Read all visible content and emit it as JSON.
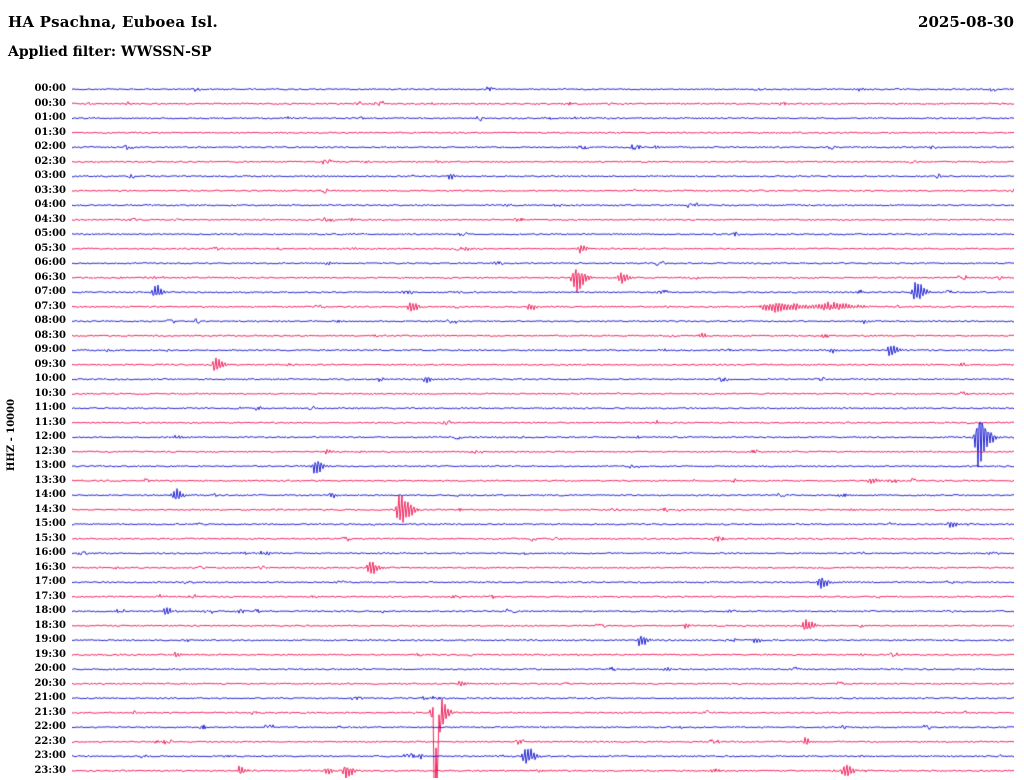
{
  "header": {
    "station_title": "HA Psachna, Euboea Isl.",
    "date": "2025-08-30",
    "filter_label": "Applied filter: WWSSN-SP"
  },
  "chart_data": {
    "type": "line",
    "subtype": "helicorder-seismogram",
    "title": "HA Psachna, Euboea Isl.",
    "date": "2025-08-30",
    "filter": "WWSSN-SP",
    "y_axis_label": "HHZ - 10000",
    "row_duration_minutes": 30,
    "grid": false,
    "legend": "none",
    "trace_colors": {
      "blue": "#0d0dcf",
      "red": "#ee1150"
    },
    "rows": [
      {
        "label": "00:00",
        "color": "blue"
      },
      {
        "label": "00:30",
        "color": "red"
      },
      {
        "label": "01:00",
        "color": "blue"
      },
      {
        "label": "01:30",
        "color": "red"
      },
      {
        "label": "02:00",
        "color": "blue"
      },
      {
        "label": "02:30",
        "color": "red"
      },
      {
        "label": "03:00",
        "color": "blue"
      },
      {
        "label": "03:30",
        "color": "red"
      },
      {
        "label": "04:00",
        "color": "blue"
      },
      {
        "label": "04:30",
        "color": "red"
      },
      {
        "label": "05:00",
        "color": "blue"
      },
      {
        "label": "05:30",
        "color": "red"
      },
      {
        "label": "06:00",
        "color": "blue"
      },
      {
        "label": "06:30",
        "color": "red"
      },
      {
        "label": "07:00",
        "color": "blue"
      },
      {
        "label": "07:30",
        "color": "red"
      },
      {
        "label": "08:00",
        "color": "blue"
      },
      {
        "label": "08:30",
        "color": "red"
      },
      {
        "label": "09:00",
        "color": "blue"
      },
      {
        "label": "09:30",
        "color": "red"
      },
      {
        "label": "10:00",
        "color": "blue"
      },
      {
        "label": "10:30",
        "color": "red"
      },
      {
        "label": "11:00",
        "color": "blue"
      },
      {
        "label": "11:30",
        "color": "red"
      },
      {
        "label": "12:00",
        "color": "blue"
      },
      {
        "label": "12:30",
        "color": "red"
      },
      {
        "label": "13:00",
        "color": "blue"
      },
      {
        "label": "13:30",
        "color": "red"
      },
      {
        "label": "14:00",
        "color": "blue"
      },
      {
        "label": "14:30",
        "color": "red"
      },
      {
        "label": "15:00",
        "color": "blue"
      },
      {
        "label": "15:30",
        "color": "red"
      },
      {
        "label": "16:00",
        "color": "blue"
      },
      {
        "label": "16:30",
        "color": "red"
      },
      {
        "label": "17:00",
        "color": "blue"
      },
      {
        "label": "17:30",
        "color": "red"
      },
      {
        "label": "18:00",
        "color": "blue"
      },
      {
        "label": "18:30",
        "color": "red"
      },
      {
        "label": "19:00",
        "color": "blue"
      },
      {
        "label": "19:30",
        "color": "red"
      },
      {
        "label": "20:00",
        "color": "blue"
      },
      {
        "label": "20:30",
        "color": "red"
      },
      {
        "label": "21:00",
        "color": "blue"
      },
      {
        "label": "21:30",
        "color": "red"
      },
      {
        "label": "22:00",
        "color": "blue"
      },
      {
        "label": "22:30",
        "color": "red"
      },
      {
        "label": "23:00",
        "color": "blue"
      },
      {
        "label": "23:30",
        "color": "red"
      }
    ],
    "events": [
      {
        "row": 0,
        "t": 0.836,
        "amp": 2.2,
        "s": 2
      },
      {
        "row": 2,
        "t": 0.534,
        "amp": 2.2,
        "s": 2
      },
      {
        "row": 4,
        "t": 0.62,
        "amp": 1.8,
        "s": 2
      },
      {
        "row": 6,
        "t": 0.401,
        "amp": 3.5,
        "s": 2.5
      },
      {
        "row": 8,
        "t": 0.46,
        "amp": 2.0,
        "s": 2
      },
      {
        "row": 9,
        "t": 0.295,
        "amp": 2.5,
        "s": 2
      },
      {
        "row": 11,
        "t": 0.417,
        "amp": 2.6,
        "s": 2
      },
      {
        "row": 11,
        "t": 0.539,
        "amp": 5,
        "s": 3
      },
      {
        "row": 12,
        "t": 0.27,
        "amp": 2.2,
        "s": 2
      },
      {
        "row": 13,
        "t": 0.534,
        "amp": 15,
        "s": 4
      },
      {
        "row": 13,
        "t": 0.582,
        "amp": 7,
        "s": 3
      },
      {
        "row": 14,
        "t": 0.088,
        "amp": 9,
        "s": 3
      },
      {
        "row": 14,
        "t": 0.895,
        "amp": 12,
        "s": 3.5
      },
      {
        "row": 15,
        "t": 0.359,
        "amp": 8,
        "s": 3
      },
      {
        "row": 15,
        "t": 0.486,
        "amp": 4.5,
        "s": 2.5
      },
      {
        "row": 15,
        "t": 0.745,
        "amp": 5.5,
        "s": 14
      },
      {
        "row": 15,
        "t": 0.8,
        "amp": 5,
        "s": 12
      },
      {
        "row": 16,
        "t": 0.84,
        "amp": 2,
        "s": 2
      },
      {
        "row": 17,
        "t": 0.667,
        "amp": 3.5,
        "s": 2
      },
      {
        "row": 18,
        "t": 0.805,
        "amp": 3,
        "s": 2
      },
      {
        "row": 18,
        "t": 0.868,
        "amp": 8,
        "s": 3
      },
      {
        "row": 19,
        "t": 0.152,
        "amp": 9,
        "s": 3
      },
      {
        "row": 19,
        "t": 0.943,
        "amp": 3,
        "s": 2
      },
      {
        "row": 20,
        "t": 0.375,
        "amp": 3.5,
        "s": 2
      },
      {
        "row": 22,
        "t": 0.3,
        "amp": 1.8,
        "s": 2
      },
      {
        "row": 23,
        "t": 0.619,
        "amp": 3,
        "s": 2
      },
      {
        "row": 24,
        "t": 0.115,
        "amp": 3.5,
        "s": 2
      },
      {
        "row": 24,
        "t": 0.962,
        "amp": 26,
        "s": 4
      },
      {
        "row": 24,
        "t": 0.962,
        "amp": 14,
        "s": 1.5
      },
      {
        "row": 25,
        "t": 0.27,
        "amp": 2.5,
        "s": 2
      },
      {
        "row": 26,
        "t": 0.258,
        "amp": 8.5,
        "s": 3
      },
      {
        "row": 27,
        "t": 0.847,
        "amp": 4.5,
        "s": 2.5
      },
      {
        "row": 28,
        "t": 0.109,
        "amp": 7.5,
        "s": 3
      },
      {
        "row": 28,
        "t": 0.274,
        "amp": 3.5,
        "s": 2
      },
      {
        "row": 29,
        "t": 0.348,
        "amp": 19,
        "s": 4
      },
      {
        "row": 30,
        "t": 0.932,
        "amp": 4.5,
        "s": 2.5
      },
      {
        "row": 32,
        "t": 0.2,
        "amp": 1.8,
        "s": 2
      },
      {
        "row": 33,
        "t": 0.316,
        "amp": 9,
        "s": 3
      },
      {
        "row": 34,
        "t": 0.794,
        "amp": 7.5,
        "s": 3
      },
      {
        "row": 36,
        "t": 0.099,
        "amp": 4.5,
        "s": 2.5
      },
      {
        "row": 37,
        "t": 0.651,
        "amp": 3.5,
        "s": 2
      },
      {
        "row": 37,
        "t": 0.778,
        "amp": 9,
        "s": 3
      },
      {
        "row": 38,
        "t": 0.603,
        "amp": 7.5,
        "s": 3
      },
      {
        "row": 38,
        "t": 0.725,
        "amp": 3.5,
        "s": 2
      },
      {
        "row": 39,
        "t": 0.109,
        "amp": 3.5,
        "s": 2
      },
      {
        "row": 40,
        "t": 0.63,
        "amp": 2.5,
        "s": 2
      },
      {
        "row": 41,
        "t": 0.412,
        "amp": 4,
        "s": 2.5
      },
      {
        "row": 43,
        "t": 0.385,
        "amp": 26,
        "s": 4
      },
      {
        "row": 43,
        "t": 0.385,
        "amp": 86,
        "s": 1.3,
        "bias": -1
      },
      {
        "row": 44,
        "t": 0.5,
        "amp": 1.8,
        "s": 2
      },
      {
        "row": 45,
        "t": 0.778,
        "amp": 4.5,
        "s": 2.5
      },
      {
        "row": 46,
        "t": 0.369,
        "amp": 3.5,
        "s": 2
      },
      {
        "row": 46,
        "t": 0.481,
        "amp": 11,
        "s": 3.5
      },
      {
        "row": 47,
        "t": 0.178,
        "amp": 5,
        "s": 2.5
      },
      {
        "row": 47,
        "t": 0.269,
        "amp": 5,
        "s": 2.5
      },
      {
        "row": 47,
        "t": 0.29,
        "amp": 9.5,
        "s": 3
      },
      {
        "row": 47,
        "t": 0.82,
        "amp": 8.5,
        "s": 3
      }
    ]
  }
}
